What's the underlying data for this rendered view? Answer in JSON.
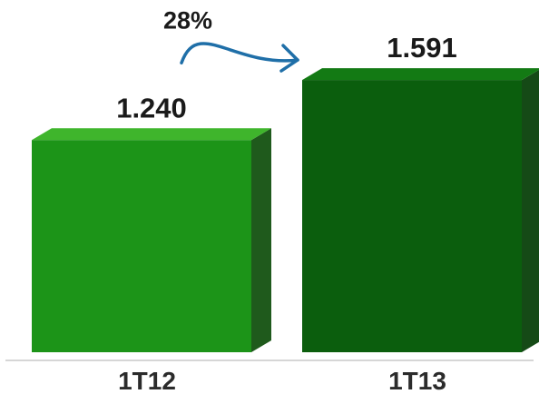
{
  "chart_data": {
    "type": "bar",
    "style": "3d",
    "categories": [
      "1T12",
      "1T13"
    ],
    "values": [
      1240,
      1591
    ],
    "data_labels": [
      "1.240",
      "1.591"
    ],
    "title": "",
    "xlabel": "",
    "ylabel": "",
    "ylim": [
      0,
      1800
    ],
    "grid": false,
    "legend": "none",
    "bar_colors": [
      {
        "front": "#1c9418",
        "top": "#3fb52c",
        "side": "#1f5a1c"
      },
      {
        "front": "#0b5e0d",
        "top": "#137a14",
        "side": "#154a16"
      }
    ],
    "annotation": {
      "text": "28%",
      "from_category": "1T12",
      "to_category": "1T13",
      "arrow_color": "#1f6fa8"
    }
  }
}
